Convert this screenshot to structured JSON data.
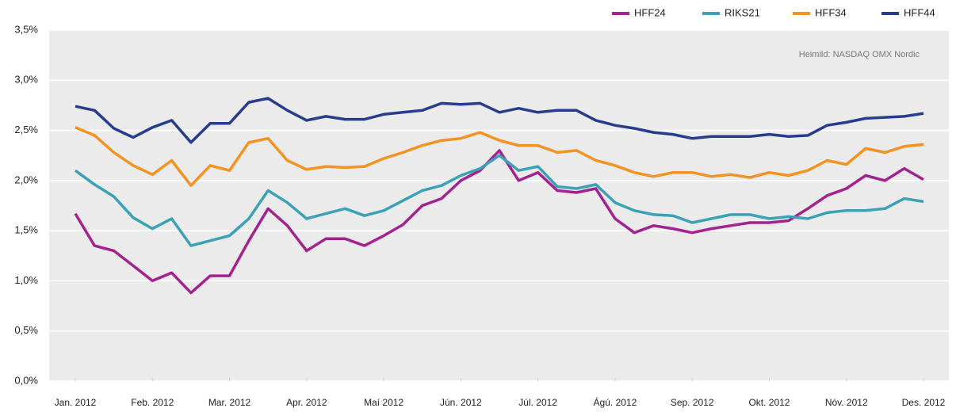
{
  "chart_data": {
    "type": "line",
    "annotation": "Heimild: NASDAQ OMX Nordic",
    "categories": [
      "Jan. 2012",
      null,
      null,
      null,
      "Feb. 2012",
      null,
      null,
      null,
      "Mar. 2012",
      null,
      null,
      null,
      "Apr. 2012",
      null,
      null,
      null,
      "Maí 2012",
      null,
      null,
      null,
      "Jún. 2012",
      null,
      null,
      null,
      "Júl. 2012",
      null,
      null,
      null,
      "Ágú. 2012",
      null,
      null,
      null,
      "Sep. 2012",
      null,
      null,
      null,
      "Okt. 2012",
      null,
      null,
      null,
      "Nóv. 2012",
      null,
      null,
      null,
      "Des. 2012"
    ],
    "series": [
      {
        "name": "HFF24",
        "color": "#a3228f",
        "values": [
          1.67,
          1.35,
          1.3,
          1.15,
          1.0,
          1.08,
          0.88,
          1.05,
          1.05,
          1.4,
          1.72,
          1.55,
          1.3,
          1.42,
          1.42,
          1.35,
          1.45,
          1.56,
          1.75,
          1.82,
          2.0,
          2.1,
          2.3,
          2.0,
          2.08,
          1.9,
          1.88,
          1.92,
          1.62,
          1.48,
          1.55,
          1.52,
          1.48,
          1.52,
          1.55,
          1.58,
          1.58,
          1.6,
          1.72,
          1.85,
          1.92,
          2.05,
          2.0,
          2.12,
          2.01
        ]
      },
      {
        "name": "RIKS21",
        "color": "#3ba1b6",
        "values": [
          2.1,
          1.96,
          1.84,
          1.63,
          1.52,
          1.62,
          1.35,
          1.4,
          1.45,
          1.62,
          1.9,
          1.78,
          1.62,
          1.67,
          1.72,
          1.65,
          1.7,
          1.8,
          1.9,
          1.95,
          2.05,
          2.12,
          2.25,
          2.1,
          2.14,
          1.94,
          1.92,
          1.96,
          1.78,
          1.7,
          1.66,
          1.65,
          1.58,
          1.62,
          1.66,
          1.66,
          1.62,
          1.64,
          1.62,
          1.68,
          1.7,
          1.7,
          1.72,
          1.82,
          1.79
        ]
      },
      {
        "name": "HFF34",
        "color": "#f39322",
        "values": [
          2.53,
          2.45,
          2.28,
          2.15,
          2.06,
          2.2,
          1.95,
          2.15,
          2.1,
          2.38,
          2.42,
          2.2,
          2.11,
          2.14,
          2.13,
          2.14,
          2.22,
          2.28,
          2.35,
          2.4,
          2.42,
          2.48,
          2.4,
          2.35,
          2.35,
          2.28,
          2.3,
          2.2,
          2.15,
          2.08,
          2.04,
          2.08,
          2.08,
          2.04,
          2.06,
          2.03,
          2.08,
          2.05,
          2.1,
          2.2,
          2.16,
          2.32,
          2.28,
          2.34,
          2.36
        ]
      },
      {
        "name": "HFF44",
        "color": "#263d8f",
        "values": [
          2.74,
          2.7,
          2.52,
          2.43,
          2.53,
          2.6,
          2.38,
          2.57,
          2.57,
          2.78,
          2.82,
          2.7,
          2.6,
          2.64,
          2.61,
          2.61,
          2.66,
          2.68,
          2.7,
          2.77,
          2.76,
          2.77,
          2.68,
          2.72,
          2.68,
          2.7,
          2.7,
          2.6,
          2.55,
          2.52,
          2.48,
          2.46,
          2.42,
          2.44,
          2.44,
          2.44,
          2.46,
          2.44,
          2.45,
          2.55,
          2.58,
          2.62,
          2.63,
          2.64,
          2.67
        ]
      }
    ],
    "ylim": [
      0,
      3.5
    ],
    "yticks": [
      {
        "value": 0,
        "label": "0,0%"
      },
      {
        "value": 0.5,
        "label": "0,5%"
      },
      {
        "value": 1,
        "label": "1,0%"
      },
      {
        "value": 1.5,
        "label": "1,5%"
      },
      {
        "value": 2,
        "label": "2,0%"
      },
      {
        "value": 2.5,
        "label": "2,5%"
      },
      {
        "value": 3,
        "label": "3,0%"
      },
      {
        "value": 3.5,
        "label": "3,5%"
      }
    ],
    "grid": true,
    "legend": "top-right"
  }
}
